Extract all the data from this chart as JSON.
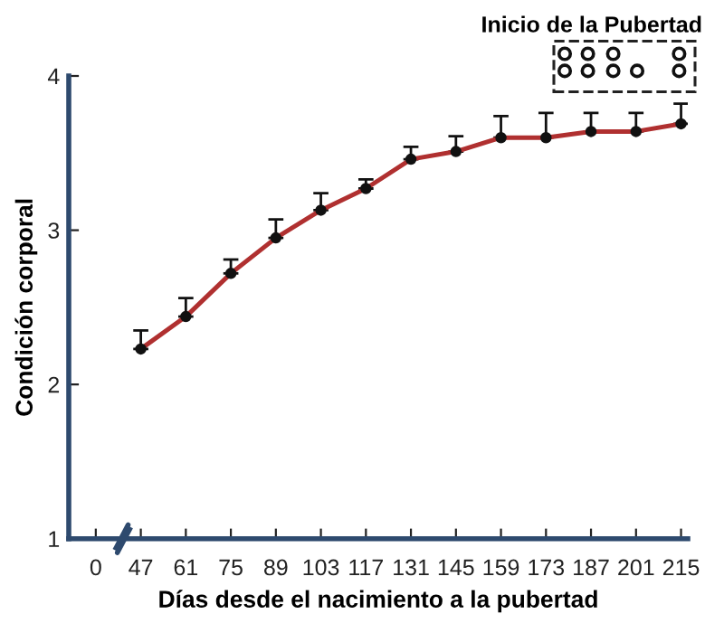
{
  "chart_data": {
    "type": "line",
    "xlabel": "Días desde el nacimiento a la pubertad",
    "ylabel": "Condición corporal",
    "annotations": [
      "Inicio de la Pubertad"
    ],
    "categories": [
      "0",
      "47",
      "61",
      "75",
      "89",
      "103",
      "117",
      "131",
      "145",
      "159",
      "173",
      "187",
      "201",
      "215"
    ],
    "series": [
      {
        "color": "#b03030",
        "values": [
          null,
          2.23,
          2.44,
          2.72,
          2.95,
          3.13,
          3.27,
          3.46,
          3.51,
          3.6,
          3.6,
          3.64,
          3.64,
          3.69
        ],
        "errors": [
          null,
          [
            2.23,
            2.35
          ],
          [
            2.44,
            2.56
          ],
          [
            2.72,
            2.81
          ],
          [
            2.95,
            3.07
          ],
          [
            3.13,
            3.24
          ],
          [
            3.27,
            3.33
          ],
          [
            3.46,
            3.54
          ],
          [
            3.51,
            3.61
          ],
          [
            3.6,
            3.74
          ],
          [
            3.6,
            3.76
          ],
          [
            3.64,
            3.76
          ],
          [
            3.64,
            3.76
          ],
          [
            3.69,
            3.82
          ]
        ]
      }
    ],
    "ylim": [
      1,
      4
    ],
    "yticks": [
      1,
      2,
      3,
      4
    ],
    "marker": "circle",
    "line_style": "solid",
    "grid": false,
    "legend": false
  }
}
